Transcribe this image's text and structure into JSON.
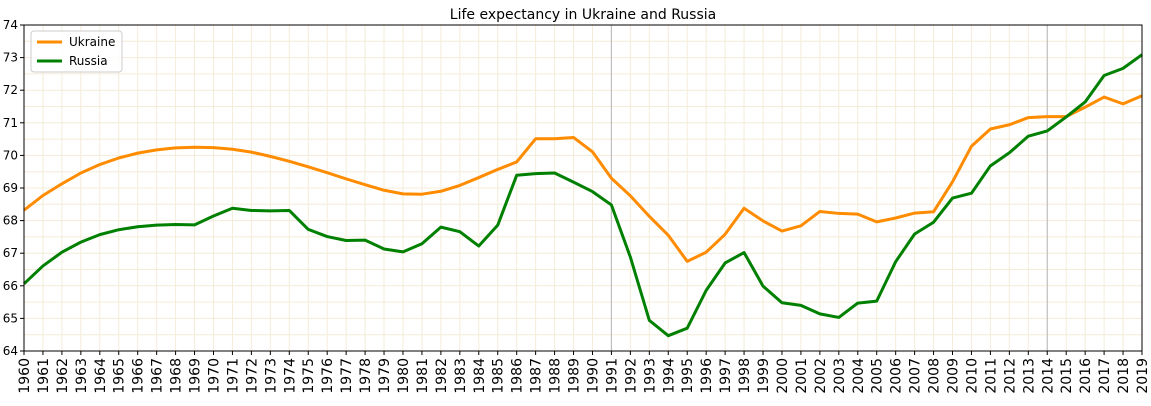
{
  "chart_data": {
    "type": "line",
    "title": "Life expectancy in Ukraine and Russia",
    "xlabel": "",
    "ylabel": "",
    "xlim": [
      1960,
      2019
    ],
    "ylim": [
      64,
      74
    ],
    "grid": true,
    "legend_position": "top-left",
    "reference_lines_x": [
      1991,
      2014
    ],
    "x": [
      1960,
      1961,
      1962,
      1963,
      1964,
      1965,
      1966,
      1967,
      1968,
      1969,
      1970,
      1971,
      1972,
      1973,
      1974,
      1975,
      1976,
      1977,
      1978,
      1979,
      1980,
      1981,
      1982,
      1983,
      1984,
      1985,
      1986,
      1987,
      1988,
      1989,
      1990,
      1991,
      1992,
      1993,
      1994,
      1995,
      1996,
      1997,
      1998,
      1999,
      2000,
      2001,
      2002,
      2003,
      2004,
      2005,
      2006,
      2007,
      2008,
      2009,
      2010,
      2011,
      2012,
      2013,
      2014,
      2015,
      2016,
      2017,
      2018,
      2019
    ],
    "x_tick_labels": [
      "1960",
      "1961",
      "1962",
      "1963",
      "1964",
      "1965",
      "1966",
      "1967",
      "1968",
      "1969",
      "1970",
      "1971",
      "1972",
      "1973",
      "1974",
      "1975",
      "1976",
      "1977",
      "1978",
      "1979",
      "1980",
      "1981",
      "1982",
      "1983",
      "1984",
      "1985",
      "1986",
      "1987",
      "1988",
      "1989",
      "1990",
      "1991",
      "1992",
      "1993",
      "1994",
      "1995",
      "1996",
      "1997",
      "1998",
      "1999",
      "2000",
      "2001",
      "2002",
      "2003",
      "2004",
      "2005",
      "2006",
      "2007",
      "2008",
      "2009",
      "2010",
      "2011",
      "2012",
      "2013",
      "2014",
      "2015",
      "2016",
      "2017",
      "2018",
      "2019"
    ],
    "y_ticks": [
      64,
      65,
      66,
      67,
      68,
      69,
      70,
      71,
      72,
      73,
      74
    ],
    "y_tick_labels": [
      "64",
      "65",
      "66",
      "67",
      "68",
      "69",
      "70",
      "71",
      "72",
      "73",
      "74"
    ],
    "series": [
      {
        "name": "Ukraine",
        "color": "#ff8c00",
        "values": [
          68.32,
          68.77,
          69.13,
          69.46,
          69.72,
          69.92,
          70.07,
          70.17,
          70.23,
          70.25,
          70.24,
          70.19,
          70.1,
          69.97,
          69.82,
          69.65,
          69.47,
          69.28,
          69.1,
          68.93,
          68.82,
          68.81,
          68.9,
          69.08,
          69.32,
          69.57,
          69.8,
          70.51,
          70.51,
          70.55,
          70.11,
          69.3,
          68.76,
          68.13,
          67.55,
          66.75,
          67.03,
          67.58,
          68.38,
          67.99,
          67.68,
          67.84,
          68.28,
          68.22,
          68.2,
          67.96,
          68.08,
          68.23,
          68.27,
          69.19,
          70.28,
          70.81,
          70.94,
          71.16,
          71.19,
          71.19,
          71.48,
          71.79,
          71.58,
          71.83
        ]
      },
      {
        "name": "Russia",
        "color": "#008000",
        "values": [
          66.06,
          66.61,
          67.03,
          67.34,
          67.57,
          67.72,
          67.81,
          67.86,
          67.88,
          67.87,
          68.14,
          68.38,
          68.31,
          68.3,
          68.31,
          67.73,
          67.51,
          67.39,
          67.4,
          67.13,
          67.04,
          67.29,
          67.8,
          67.66,
          67.22,
          67.86,
          69.39,
          69.44,
          69.46,
          69.18,
          68.89,
          68.48,
          66.88,
          64.94,
          64.47,
          64.7,
          65.86,
          66.7,
          67.02,
          65.99,
          65.48,
          65.4,
          65.14,
          65.03,
          65.47,
          65.53,
          66.74,
          67.59,
          67.95,
          68.69,
          68.84,
          69.68,
          70.08,
          70.59,
          70.75,
          71.18,
          71.64,
          72.45,
          72.67,
          73.09
        ]
      }
    ]
  }
}
